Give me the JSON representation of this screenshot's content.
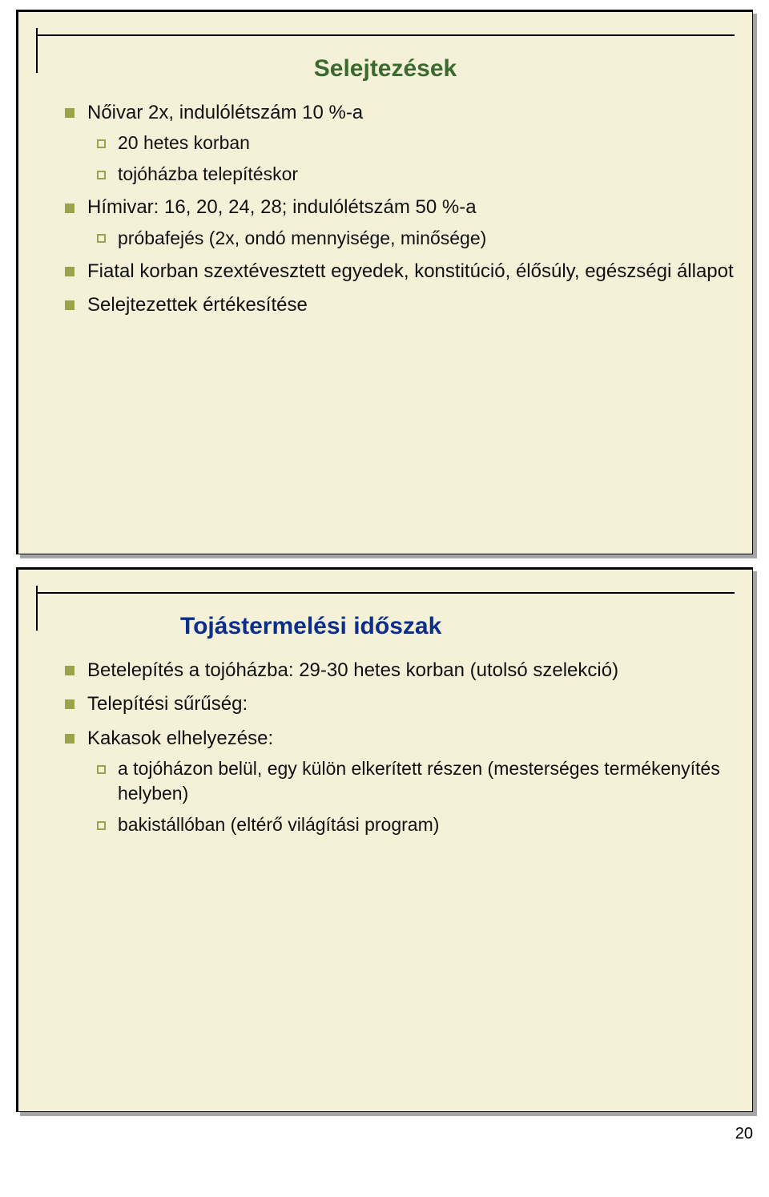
{
  "colors": {
    "slide_bg": "#f5f1d9",
    "title_green": "#3a6a2e",
    "title_blue": "#0a2e8a",
    "bullet_fill": "#9aa24a",
    "text_color": "#111111",
    "rule_color": "#000000",
    "shadow_color": "rgba(0,0,0,0.35)"
  },
  "typography": {
    "title_fontsize_pt": 22,
    "body_fontsize_pt": 18,
    "font_family": "Verdana"
  },
  "slide1": {
    "title": "Selejtezések",
    "items": [
      {
        "text": "Nőivar 2x, indulólétszám 10 %-a",
        "sub": [
          "20 hetes korban",
          "tojóházba telepítéskor"
        ]
      },
      {
        "text": "Hímivar: 16, 20, 24, 28; indulólétszám 50 %-a",
        "sub": [
          "próbafejés (2x, ondó mennyisége, minősége)"
        ]
      },
      {
        "text": "Fiatal korban szextévesztett egyedek, konstitúció, élősúly, egészségi állapot",
        "sub": []
      },
      {
        "text": "Selejtezettek értékesítése",
        "sub": []
      }
    ]
  },
  "slide2": {
    "title": "Tojástermelési időszak",
    "items": [
      {
        "text": "Betelepítés a tojóházba: 29-30 hetes korban (utolsó szelekció)",
        "sub": []
      },
      {
        "text": "Telepítési sűrűség:",
        "sub": []
      },
      {
        "text": "Kakasok elhelyezése:",
        "sub": [
          "a tojóházon belül, egy külön elkerített részen (mesterséges termékenyítés helyben)",
          "bakistállóban (eltérő világítási program)"
        ]
      }
    ]
  },
  "page_number": "20"
}
